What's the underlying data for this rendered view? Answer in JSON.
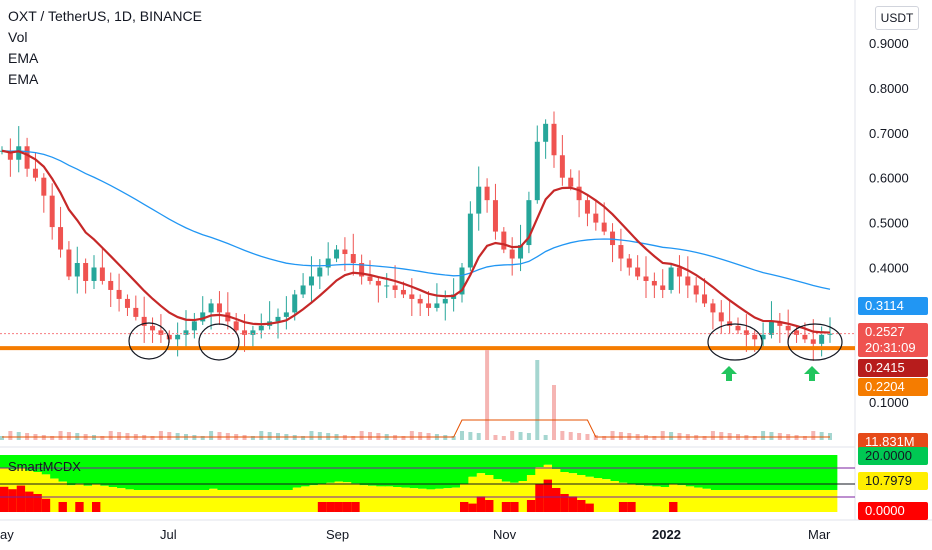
{
  "header": {
    "title": "OXT / TetherUS, 1D, BINANCE",
    "indicators": [
      "Vol",
      "EMA",
      "EMA"
    ]
  },
  "currency_button": "USDT",
  "indicator_pane_label": "SmartMCDX",
  "price_axis": {
    "ticks": [
      "0.9000",
      "0.8000",
      "0.7000",
      "0.6000",
      "0.5000",
      "0.4000",
      "0.1000"
    ]
  },
  "badges": {
    "ema_long": "0.3114",
    "last_price": "0.2527",
    "countdown": "20:31:09",
    "ema_short": "0.2415",
    "support": "0.2204",
    "volume": "11.831M",
    "mcdx_top": "20.0000",
    "mcdx_mid": "10.7979",
    "mcdx_zero": "0.0000"
  },
  "time_axis": {
    "labels": [
      "ay",
      "Jul",
      "Sep",
      "Nov",
      "2022",
      "Mar"
    ]
  },
  "colors": {
    "up": "#26a69a",
    "down": "#ef5350",
    "ema_short": "#c62828",
    "ema_long": "#2196f3",
    "support_line": "#f57c00",
    "last_price": "#f77c80",
    "mcdx_green": "#00ff00",
    "mcdx_yellow": "#ffff00",
    "mcdx_red": "#ff0000",
    "arrow": "#22c55e"
  },
  "chart_data": {
    "type": "candlestick",
    "symbol": "OXT/USDT",
    "interval": "1D",
    "ylim": [
      0.0,
      0.95
    ],
    "support_level": 0.2204,
    "last_price": 0.2527,
    "ema_short_last": 0.2415,
    "ema_long_last": 0.3114,
    "close_series": [
      0.66,
      0.64,
      0.67,
      0.62,
      0.6,
      0.56,
      0.49,
      0.44,
      0.38,
      0.41,
      0.37,
      0.4,
      0.37,
      0.35,
      0.33,
      0.31,
      0.29,
      0.27,
      0.26,
      0.25,
      0.24,
      0.25,
      0.26,
      0.28,
      0.3,
      0.32,
      0.3,
      0.28,
      0.26,
      0.25,
      0.26,
      0.27,
      0.28,
      0.29,
      0.3,
      0.34,
      0.36,
      0.38,
      0.4,
      0.42,
      0.44,
      0.43,
      0.41,
      0.38,
      0.37,
      0.36,
      0.36,
      0.35,
      0.34,
      0.33,
      0.32,
      0.31,
      0.32,
      0.33,
      0.34,
      0.4,
      0.52,
      0.58,
      0.55,
      0.48,
      0.44,
      0.42,
      0.45,
      0.55,
      0.68,
      0.72,
      0.65,
      0.6,
      0.58,
      0.55,
      0.52,
      0.5,
      0.48,
      0.45,
      0.42,
      0.4,
      0.38,
      0.37,
      0.36,
      0.35,
      0.4,
      0.38,
      0.36,
      0.34,
      0.32,
      0.3,
      0.28,
      0.27,
      0.26,
      0.25,
      0.24,
      0.25,
      0.28,
      0.27,
      0.26,
      0.25,
      0.24,
      0.23,
      0.25,
      0.2527
    ],
    "volume_spikes_m": [
      {
        "index": 58,
        "value": 90
      },
      {
        "index": 64,
        "value": 80
      },
      {
        "index": 66,
        "value": 55
      }
    ],
    "annotations": [
      "support-circle-x4",
      "buy-arrow-x2"
    ]
  }
}
